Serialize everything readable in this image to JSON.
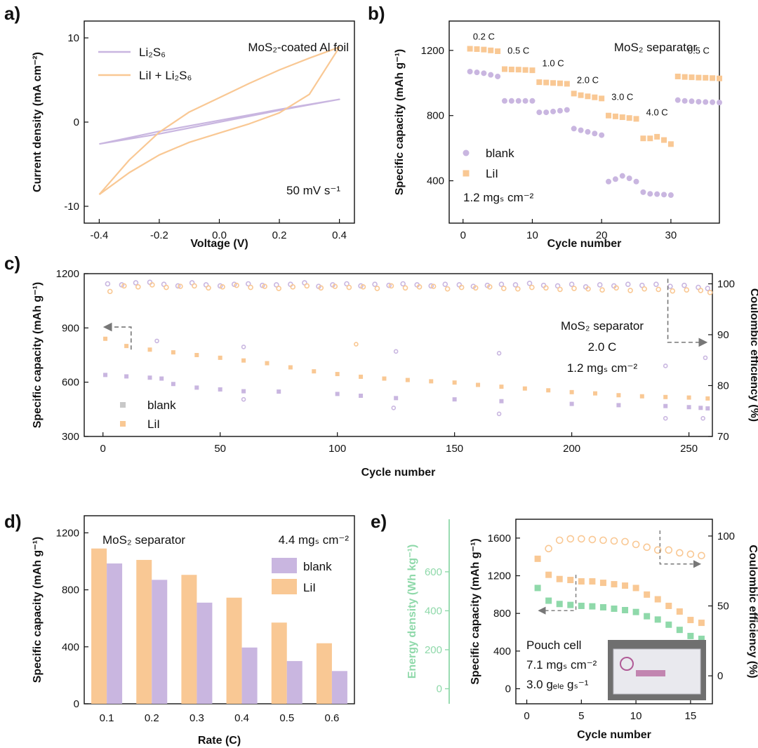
{
  "colors": {
    "blank": "#c9b6e0",
    "lii": "#f9c894",
    "energy": "#8fd9aa",
    "axis": "#111111"
  },
  "chart_data": [
    {
      "panel": "a)",
      "type": "line",
      "xlabel": "Voltage (V)",
      "ylabel": "Current density (mA cm⁻²)",
      "xlim": [
        -0.45,
        0.45
      ],
      "ylim": [
        -12,
        12
      ],
      "xticks": [
        -0.4,
        -0.2,
        0.0,
        0.2,
        0.4
      ],
      "xtick_labels": [
        "-0.4",
        "-0.2",
        "0.0",
        "0.2",
        "0.4"
      ],
      "yticks": [
        10,
        0,
        -10
      ],
      "ytick_labels": [
        "10",
        "0",
        "-10"
      ],
      "annotations": [
        "MoS₂-coated Al foil",
        "50 mV s⁻¹"
      ],
      "legend_labels": [
        "Li₂S₆",
        "LiI + Li₂S₆"
      ],
      "series": [
        {
          "name": "Li₂S₆",
          "color_key": "blank",
          "x": [
            -0.4,
            -0.2,
            0.0,
            0.2,
            0.4,
            0.2,
            0.0,
            -0.2,
            -0.4
          ],
          "y": [
            -2.6,
            -1.1,
            0.2,
            1.5,
            2.7,
            1.4,
            0.0,
            -1.4,
            -2.6
          ]
        },
        {
          "name": "LiI + Li₂S₆",
          "color_key": "lii",
          "x": [
            -0.4,
            -0.3,
            -0.2,
            -0.1,
            0.0,
            0.1,
            0.2,
            0.3,
            0.4,
            0.3,
            0.2,
            0.1,
            0.0,
            -0.1,
            -0.2,
            -0.3,
            -0.4
          ],
          "y": [
            -8.6,
            -4.5,
            -1.2,
            1.2,
            2.9,
            4.6,
            6.2,
            7.6,
            8.9,
            3.3,
            1.1,
            -0.2,
            -1.3,
            -2.4,
            -3.9,
            -6.0,
            -8.6
          ]
        }
      ]
    },
    {
      "panel": "b)",
      "type": "scatter",
      "xlabel": "Cycle number",
      "ylabel": "Specific capacity (mAh g⁻¹)",
      "xlim": [
        -2,
        37
      ],
      "ylim": [
        140,
        1380
      ],
      "xticks": [
        0,
        10,
        20,
        30
      ],
      "xtick_labels": [
        "0",
        "10",
        "20",
        "30"
      ],
      "yticks": [
        400,
        800,
        1200
      ],
      "ytick_labels": [
        "400",
        "800",
        "1200"
      ],
      "annotations": [
        "MoS₂ separator",
        "1.2 mgₛ cm⁻²"
      ],
      "rate_labels": [
        {
          "text": "0.2 C",
          "x": 3,
          "y": 1265
        },
        {
          "text": "0.5 C",
          "x": 8,
          "y": 1180
        },
        {
          "text": "1.0 C",
          "x": 13,
          "y": 1103
        },
        {
          "text": "2.0 C",
          "x": 18,
          "y": 1000
        },
        {
          "text": "3.0 C",
          "x": 23,
          "y": 895
        },
        {
          "text": "4.0 C",
          "x": 28,
          "y": 800
        },
        {
          "text": "0.5 C",
          "x": 34,
          "y": 1180
        }
      ],
      "legend_labels": [
        "blank",
        "LiI"
      ],
      "series": [
        {
          "name": "blank",
          "color_key": "blank",
          "marker": "circle",
          "x": [
            1,
            2,
            3,
            4,
            5,
            6,
            7,
            8,
            9,
            10,
            11,
            12,
            13,
            14,
            15,
            16,
            17,
            18,
            19,
            20,
            21,
            22,
            23,
            24,
            25,
            26,
            27,
            28,
            29,
            30,
            31,
            32,
            33,
            34,
            35,
            36,
            37
          ],
          "y": [
            1070,
            1065,
            1060,
            1050,
            1040,
            890,
            890,
            890,
            890,
            890,
            820,
            820,
            825,
            830,
            835,
            720,
            710,
            700,
            690,
            680,
            395,
            410,
            430,
            415,
            395,
            330,
            320,
            318,
            315,
            312,
            895,
            890,
            888,
            885,
            883,
            882,
            880
          ]
        },
        {
          "name": "LiI",
          "color_key": "lii",
          "marker": "square",
          "x": [
            1,
            2,
            3,
            4,
            5,
            6,
            7,
            8,
            9,
            10,
            11,
            12,
            13,
            14,
            15,
            16,
            17,
            18,
            19,
            20,
            21,
            22,
            23,
            24,
            25,
            26,
            27,
            28,
            29,
            30,
            31,
            32,
            33,
            34,
            35,
            36,
            37
          ],
          "y": [
            1210,
            1208,
            1205,
            1200,
            1195,
            1085,
            1083,
            1082,
            1080,
            1078,
            1005,
            1003,
            1000,
            998,
            995,
            935,
            925,
            918,
            912,
            905,
            800,
            795,
            790,
            785,
            780,
            660,
            660,
            670,
            650,
            625,
            1040,
            1037,
            1035,
            1033,
            1032,
            1030,
            1028
          ]
        }
      ]
    },
    {
      "panel": "c)",
      "type": "scatter",
      "xlabel": "Cycle number",
      "ylabel": "Specific capacity (mAh g⁻¹)",
      "ylabel_right": "Coulombic efficiency (%)",
      "xlim": [
        -8,
        260
      ],
      "ylim": [
        300,
        1200
      ],
      "ylim_right": [
        70,
        102
      ],
      "xticks": [
        0,
        50,
        100,
        150,
        200,
        250
      ],
      "xtick_labels": [
        "0",
        "50",
        "100",
        "150",
        "200",
        "250"
      ],
      "yticks": [
        300,
        600,
        900,
        1200
      ],
      "ytick_labels": [
        "300",
        "600",
        "900",
        "1200"
      ],
      "yticks_right": [
        70,
        80,
        90,
        100
      ],
      "ytick_labels_right": [
        "70",
        "80",
        "90",
        "100"
      ],
      "annotations": [
        "MoS₂ separator",
        "2.0 C",
        "1.2 mgₛ cm⁻²"
      ],
      "legend_labels": [
        "blank",
        "LiI"
      ],
      "series": [
        {
          "name": "blank",
          "color_key": "blank",
          "marker": "square",
          "axis": "left",
          "x": [
            1,
            10,
            20,
            25,
            30,
            40,
            50,
            60,
            75,
            100,
            110,
            125,
            150,
            170,
            200,
            220,
            240,
            250,
            255,
            258
          ],
          "y": [
            640,
            632,
            625,
            620,
            590,
            570,
            560,
            550,
            548,
            535,
            525,
            512,
            505,
            495,
            480,
            473,
            468,
            462,
            458,
            455
          ]
        },
        {
          "name": "LiI",
          "color_key": "lii",
          "marker": "square",
          "axis": "left",
          "x": [
            1,
            10,
            20,
            30,
            40,
            50,
            60,
            70,
            80,
            90,
            100,
            110,
            120,
            130,
            140,
            150,
            160,
            170,
            180,
            190,
            200,
            210,
            220,
            230,
            240,
            250,
            258
          ],
          "y": [
            840,
            800,
            780,
            765,
            750,
            735,
            720,
            705,
            682,
            660,
            645,
            630,
            620,
            612,
            605,
            598,
            585,
            575,
            565,
            555,
            545,
            538,
            528,
            522,
            518,
            515,
            510
          ]
        },
        {
          "name": "blank CE",
          "color_key": "blank",
          "marker": "circle",
          "axis": "right",
          "x": [
            2,
            8,
            14,
            20,
            26,
            32,
            38,
            44,
            50,
            56,
            62,
            68,
            74,
            80,
            86,
            92,
            98,
            104,
            110,
            116,
            122,
            128,
            134,
            140,
            146,
            152,
            158,
            164,
            170,
            176,
            182,
            188,
            194,
            200,
            206,
            212,
            218,
            224,
            230,
            236,
            242,
            248,
            254,
            258
          ],
          "y": [
            100,
            99.8,
            100.2,
            100.3,
            99.9,
            99.6,
            100.2,
            99.8,
            99.6,
            99.9,
            100,
            99.7,
            99.8,
            99.9,
            100.2,
            99.5,
            99.8,
            100,
            99.6,
            99.9,
            99.7,
            100,
            99.8,
            99.6,
            99.9,
            99.8,
            99.5,
            99.7,
            99.9,
            99.8,
            100.1,
            99.7,
            99.6,
            99.9,
            99.4,
            99.8,
            99.6,
            99.9,
            99.7,
            99.9,
            99.5,
            99.7,
            99.3,
            99.1
          ]
        },
        {
          "name": "LiI CE",
          "color_key": "lii",
          "marker": "circle",
          "axis": "right",
          "x": [
            3,
            9,
            15,
            21,
            27,
            33,
            39,
            45,
            51,
            57,
            63,
            69,
            75,
            81,
            87,
            93,
            99,
            105,
            111,
            117,
            123,
            129,
            135,
            141,
            147,
            153,
            159,
            165,
            171,
            177,
            183,
            189,
            195,
            201,
            207,
            213,
            219,
            225,
            231,
            237,
            243,
            249,
            255,
            259
          ],
          "y": [
            98.5,
            99.6,
            99.4,
            99.8,
            99.3,
            99.5,
            99.6,
            99.2,
            99.4,
            99.7,
            99.3,
            99.5,
            99.1,
            99.4,
            99.6,
            99.2,
            99.5,
            99.3,
            99.4,
            99.1,
            99.6,
            99.2,
            99.4,
            99.5,
            99.0,
            99.3,
            99.2,
            99.4,
            99.1,
            99.0,
            99.3,
            99.2,
            98.9,
            99.1,
            99.0,
            98.8,
            99.2,
            98.7,
            99.0,
            98.9,
            98.6,
            98.8,
            98.7,
            98.3
          ]
        }
      ],
      "outliers": [
        {
          "color_key": "lii",
          "x": 108,
          "y": 810
        },
        {
          "color_key": "blank",
          "x": 23,
          "y": 828
        },
        {
          "color_key": "blank",
          "x": 60,
          "y": 795
        },
        {
          "color_key": "blank",
          "x": 125,
          "y": 770
        },
        {
          "color_key": "blank",
          "x": 169,
          "y": 760
        },
        {
          "color_key": "blank",
          "x": 240,
          "y": 690
        },
        {
          "color_key": "blank",
          "x": 257,
          "y": 735
        },
        {
          "color_key": "blank",
          "x": 60,
          "y": 505
        },
        {
          "color_key": "blank",
          "x": 124,
          "y": 458
        },
        {
          "color_key": "blank",
          "x": 169,
          "y": 425
        },
        {
          "color_key": "blank",
          "x": 240,
          "y": 400
        },
        {
          "color_key": "blank",
          "x": 256,
          "y": 400
        }
      ]
    },
    {
      "panel": "d)",
      "type": "bar",
      "xlabel": "Rate (C)",
      "ylabel": "Specific capacity (mAh g⁻¹)",
      "categories": [
        "0.1",
        "0.2",
        "0.3",
        "0.4",
        "0.5",
        "0.6"
      ],
      "ylim": [
        0,
        1320
      ],
      "yticks": [
        0,
        400,
        800,
        1200
      ],
      "ytick_labels": [
        "0",
        "400",
        "800",
        "1200"
      ],
      "annotations": [
        "MoS₂ separator",
        "4.4 mgₛ cm⁻²"
      ],
      "legend_labels": [
        "blank",
        "LiI"
      ],
      "series": [
        {
          "name": "LiI",
          "color_key": "lii",
          "values": [
            1090,
            1010,
            905,
            745,
            570,
            425
          ]
        },
        {
          "name": "blank",
          "color_key": "blank",
          "values": [
            985,
            870,
            710,
            395,
            300,
            230
          ]
        }
      ]
    },
    {
      "panel": "e)",
      "type": "scatter",
      "xlabel": "Cycle number",
      "ylabel": "Specific capacity (mAh g⁻¹)",
      "ylabel_left2": "Energy density (Wh kg⁻¹)",
      "ylabel_right": "Coulombic efficiency (%)",
      "xlim": [
        -1,
        17
      ],
      "ylim": [
        -160,
        1800
      ],
      "ylim_right": [
        -20,
        112
      ],
      "xticks": [
        0,
        5,
        10,
        15
      ],
      "xtick_labels": [
        "0",
        "5",
        "10",
        "15"
      ],
      "yticks": [
        0,
        400,
        800,
        1200,
        1600
      ],
      "ytick_labels": [
        "0",
        "400",
        "800",
        "1200",
        "1600"
      ],
      "energy_ticks": [
        0,
        200,
        400,
        600
      ],
      "energy_tick_labels": [
        "0",
        "200",
        "400",
        "600"
      ],
      "yticks_right": [
        0,
        50,
        100
      ],
      "ytick_labels_right": [
        "0",
        "50",
        "100"
      ],
      "annotations": [
        "Pouch cell",
        "7.1 mgₛ cm⁻²",
        "3.0 gₑₗₑ gₛ⁻¹"
      ],
      "series": [
        {
          "name": "Specific capacity",
          "color_key": "lii",
          "marker": "square",
          "axis": "left",
          "x": [
            1,
            2,
            3,
            4,
            5,
            6,
            7,
            8,
            9,
            10,
            11,
            12,
            13,
            14,
            15,
            16
          ],
          "y": [
            1380,
            1210,
            1165,
            1155,
            1140,
            1140,
            1125,
            1110,
            1095,
            1070,
            1000,
            950,
            880,
            820,
            730,
            700
          ]
        },
        {
          "name": "Energy density",
          "color_key": "energy",
          "marker": "square",
          "axis": "left",
          "x": [
            1,
            2,
            3,
            4,
            5,
            6,
            7,
            8,
            9,
            10,
            11,
            12,
            13,
            14,
            15,
            16
          ],
          "y": [
            1070,
            935,
            900,
            890,
            880,
            875,
            865,
            850,
            835,
            815,
            770,
            735,
            680,
            625,
            560,
            530
          ]
        },
        {
          "name": "Coulombic efficiency",
          "color_key": "lii",
          "marker": "circle",
          "axis": "right",
          "x": [
            2,
            3,
            4,
            5,
            6,
            7,
            8,
            9,
            10,
            11,
            12,
            13,
            14,
            15,
            16
          ],
          "y": [
            91,
            97,
            98,
            98,
            97.5,
            97,
            96.5,
            96,
            94,
            92,
            90,
            90,
            88,
            87,
            86
          ]
        }
      ]
    }
  ]
}
